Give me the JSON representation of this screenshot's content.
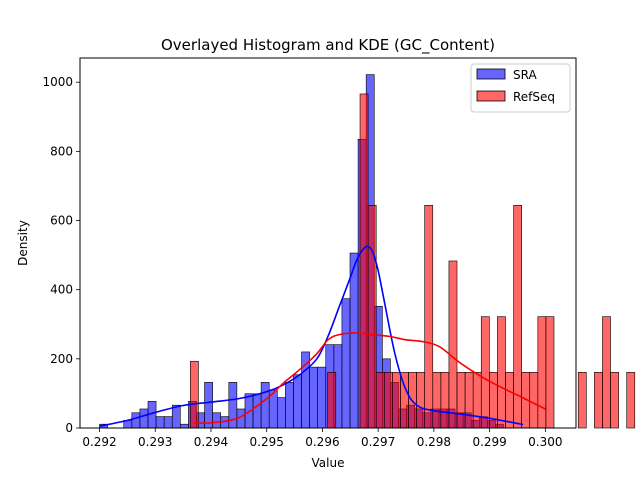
{
  "chart_data": {
    "type": "histogram",
    "title": "Overlayed Histogram and KDE (GC_Content)",
    "xlabel": "Value",
    "ylabel": "Density",
    "xlim": [
      0.29165,
      0.30055
    ],
    "ylim": [
      0,
      1070
    ],
    "xticks": [
      0.292,
      0.293,
      0.294,
      0.295,
      0.296,
      0.297,
      0.298,
      0.299,
      0.3
    ],
    "xtick_labels": [
      "0.292",
      "0.293",
      "0.294",
      "0.295",
      "0.296",
      "0.297",
      "0.298",
      "0.299",
      "0.300"
    ],
    "yticks": [
      0,
      200,
      400,
      600,
      800,
      1000
    ],
    "ytick_labels": [
      "0",
      "200",
      "400",
      "600",
      "800",
      "1000"
    ],
    "grid": false,
    "legend_position": "top-right",
    "series": [
      {
        "name": "SRA",
        "color": "#0000ff",
        "bar_alpha": 0.6,
        "bin_start": 0.292,
        "bin_width": 0.000145,
        "values": [
          11,
          0,
          0,
          22,
          44,
          55,
          77,
          33,
          33,
          66,
          11,
          77,
          44,
          132,
          44,
          33,
          132,
          55,
          99,
          99,
          132,
          110,
          88,
          132,
          154,
          220,
          176,
          176,
          241,
          241,
          374,
          506,
          835,
          1022,
          352,
          200,
          132,
          55,
          66,
          55,
          44,
          55,
          55,
          55,
          44,
          44,
          22,
          33,
          22,
          11
        ],
        "kde": {
          "x": [
            0.292,
            0.2925,
            0.293,
            0.2935,
            0.294,
            0.2945,
            0.295,
            0.2953,
            0.2956,
            0.2959,
            0.2961,
            0.2963,
            0.2965,
            0.2966,
            0.2967,
            0.2968,
            0.2969,
            0.297,
            0.2971,
            0.2973,
            0.2975,
            0.2977,
            0.298,
            0.2985,
            0.299,
            0.2996
          ],
          "y": [
            5,
            22,
            45,
            65,
            75,
            85,
            105,
            125,
            155,
            200,
            265,
            350,
            435,
            480,
            510,
            525,
            510,
            455,
            375,
            215,
            110,
            65,
            50,
            40,
            28,
            10
          ]
        }
      },
      {
        "name": "RefSeq",
        "color": "#ff0000",
        "bar_alpha": 0.6,
        "bin_start": 0.29363,
        "bin_width": 0.000145,
        "values": [
          193,
          0,
          0,
          0,
          0,
          0,
          0,
          0,
          0,
          0,
          0,
          0,
          0,
          0,
          0,
          0,
          0,
          161,
          0,
          0,
          0,
          966,
          644,
          161,
          161,
          161,
          161,
          161,
          161,
          644,
          161,
          161,
          483,
          161,
          161,
          161,
          322,
          161,
          322,
          161,
          644,
          161,
          161,
          322,
          322,
          0,
          0,
          0,
          161,
          0,
          161,
          322,
          161,
          0,
          161
        ],
        "kde": {
          "x": [
            0.2937,
            0.294,
            0.2945,
            0.295,
            0.2953,
            0.2956,
            0.2959,
            0.2961,
            0.2963,
            0.2966,
            0.2969,
            0.2972,
            0.2975,
            0.2978,
            0.2981,
            0.2985,
            0.299,
            0.2995,
            0.3
          ],
          "y": [
            15,
            15,
            30,
            85,
            130,
            170,
            215,
            255,
            270,
            275,
            270,
            265,
            255,
            250,
            235,
            185,
            135,
            95,
            55
          ]
        }
      }
    ]
  }
}
